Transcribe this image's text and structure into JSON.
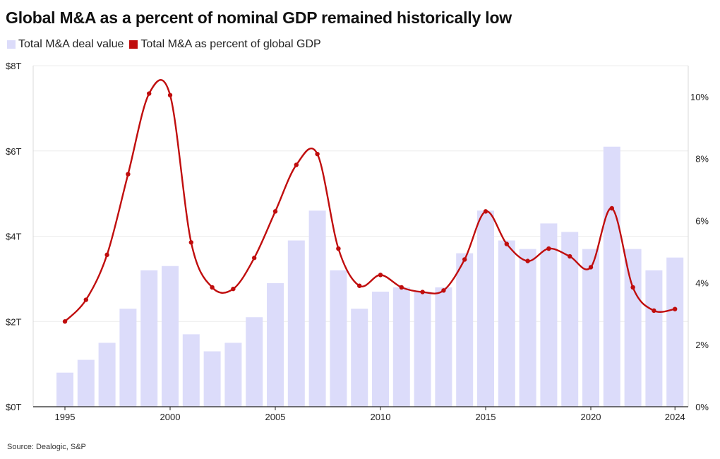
{
  "title": "Global M&A as a percent of nominal GDP remained historically low",
  "source": "Source: Dealogic, S&P",
  "colors": {
    "bar": "#dcdcfa",
    "line": "#c00d0d",
    "grid": "#ececec",
    "axis": "#222222"
  },
  "chart_data": {
    "type": "bar",
    "title": "Global M&A as a percent of nominal GDP remained historically low",
    "categories": [
      1995,
      1996,
      1997,
      1998,
      1999,
      2000,
      2001,
      2002,
      2003,
      2004,
      2005,
      2006,
      2007,
      2008,
      2009,
      2010,
      2011,
      2012,
      2013,
      2014,
      2015,
      2016,
      2017,
      2018,
      2019,
      2020,
      2021,
      2022,
      2023,
      2024
    ],
    "series": [
      {
        "name": "Total M&A deal value",
        "type": "bar",
        "axis": "left",
        "unit": "$T",
        "values": [
          0.8,
          1.1,
          1.5,
          2.3,
          3.2,
          3.3,
          1.7,
          1.3,
          1.5,
          2.1,
          2.9,
          3.9,
          4.6,
          3.2,
          2.3,
          2.7,
          2.8,
          2.7,
          2.8,
          3.6,
          4.6,
          3.9,
          3.7,
          4.3,
          4.1,
          3.7,
          6.1,
          3.7,
          3.2,
          3.5
        ]
      },
      {
        "name": "Total M&A as percent of global GDP",
        "type": "line",
        "axis": "right",
        "unit": "%",
        "values": [
          2.75,
          3.45,
          4.9,
          7.5,
          10.1,
          10.05,
          5.3,
          3.85,
          3.8,
          4.8,
          6.3,
          7.8,
          8.15,
          5.1,
          3.9,
          4.25,
          3.85,
          3.7,
          3.75,
          4.75,
          6.3,
          5.25,
          4.7,
          5.1,
          4.85,
          4.5,
          6.4,
          3.85,
          3.1,
          3.15
        ]
      }
    ],
    "x_ticks": [
      "1995",
      "2000",
      "2005",
      "2010",
      "2015",
      "2020",
      "2024"
    ],
    "y_left": {
      "min": 0,
      "max": 8,
      "ticks": [
        0,
        2,
        4,
        6,
        8
      ],
      "tick_labels": [
        "$0T",
        "$2T",
        "$4T",
        "$6T",
        "$8T"
      ]
    },
    "y_right": {
      "min": 0,
      "max": 11,
      "ticks": [
        0,
        2,
        4,
        6,
        8,
        10
      ],
      "tick_labels": [
        "0%",
        "2%",
        "4%",
        "6%",
        "8%",
        "10%"
      ]
    },
    "legend": [
      "Total M&A deal value",
      "Total M&A as percent of global GDP"
    ],
    "legend_position": "top-left",
    "grid": true
  }
}
